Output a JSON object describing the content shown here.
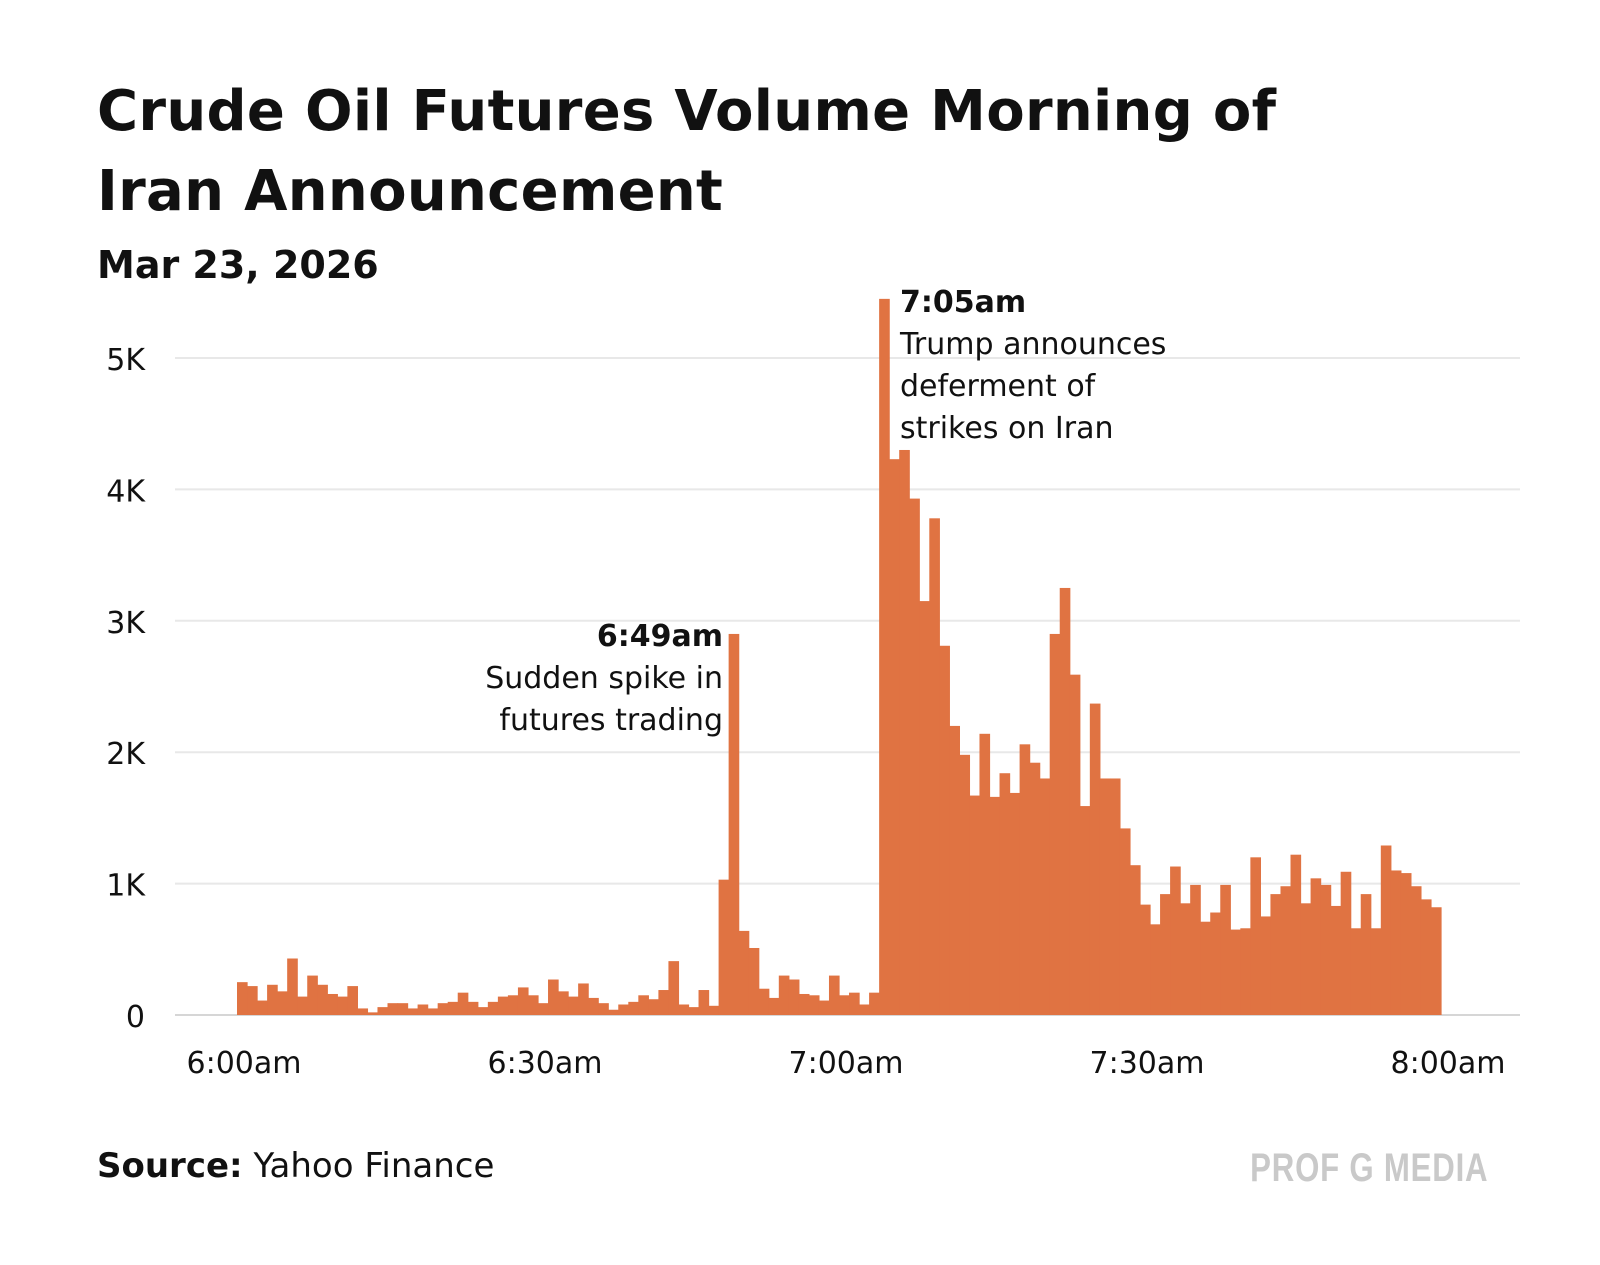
{
  "header": {
    "title": "Crude Oil Futures Volume Morning of Iran Announcement",
    "subtitle": "Mar 23, 2026"
  },
  "footer": {
    "source_label": "Source:",
    "source_value": "Yahoo Finance",
    "brand": "PROF G MEDIA"
  },
  "colors": {
    "bar": "#E07342",
    "grid": "#E8E8E8",
    "text": "#111111",
    "brand": "#C9C9C9"
  },
  "chart_data": {
    "type": "bar",
    "title": "Crude Oil Futures Volume Morning of Iran Announcement",
    "subtitle": "Mar 23, 2026",
    "xlabel": "",
    "ylabel": "",
    "ylim": [
      0,
      5500
    ],
    "yticks": [
      0,
      1000,
      2000,
      3000,
      4000,
      5000
    ],
    "ytick_labels": [
      "0",
      "1K",
      "2K",
      "3K",
      "4K",
      "5K"
    ],
    "xticks": [
      "6:00am",
      "6:30am",
      "7:00am",
      "7:30am",
      "8:00am"
    ],
    "grid": true,
    "legend": "none",
    "series": [
      {
        "values": [
          250,
          220,
          110,
          230,
          180,
          430,
          140,
          300,
          230,
          160,
          140,
          220,
          50,
          20,
          60,
          90,
          90,
          50,
          80,
          50,
          90,
          100,
          170,
          100,
          60,
          100,
          140,
          150,
          210,
          150,
          90,
          270,
          180,
          140,
          240,
          130,
          90,
          40,
          80,
          100,
          150,
          120,
          190,
          410,
          80,
          60,
          190,
          70,
          1030,
          2900,
          640,
          510,
          200,
          130,
          300,
          270,
          160,
          150,
          110,
          300,
          150,
          170,
          80,
          170,
          5450,
          4230,
          4300,
          3930,
          3150,
          3780,
          2810,
          2200,
          1980,
          1670,
          2140,
          1660,
          1840,
          1690,
          2060,
          1920,
          1800,
          2900,
          3250,
          2590,
          1590,
          2370,
          1800,
          1800,
          1420,
          1140,
          840,
          690,
          920,
          1130,
          850,
          990,
          710,
          780,
          990,
          650,
          660,
          1200,
          750,
          920,
          980,
          1220,
          850,
          1040,
          990,
          830,
          1090,
          660,
          920,
          660,
          1290,
          1100,
          1080,
          980,
          880,
          820
        ]
      }
    ],
    "annotations": [
      {
        "time": "6:49am",
        "text_lines": [
          "Sudden spike in",
          "futures trading"
        ]
      },
      {
        "time": "7:05am",
        "text_lines": [
          "Trump announces",
          "deferment of",
          "strikes on Iran"
        ]
      }
    ]
  }
}
